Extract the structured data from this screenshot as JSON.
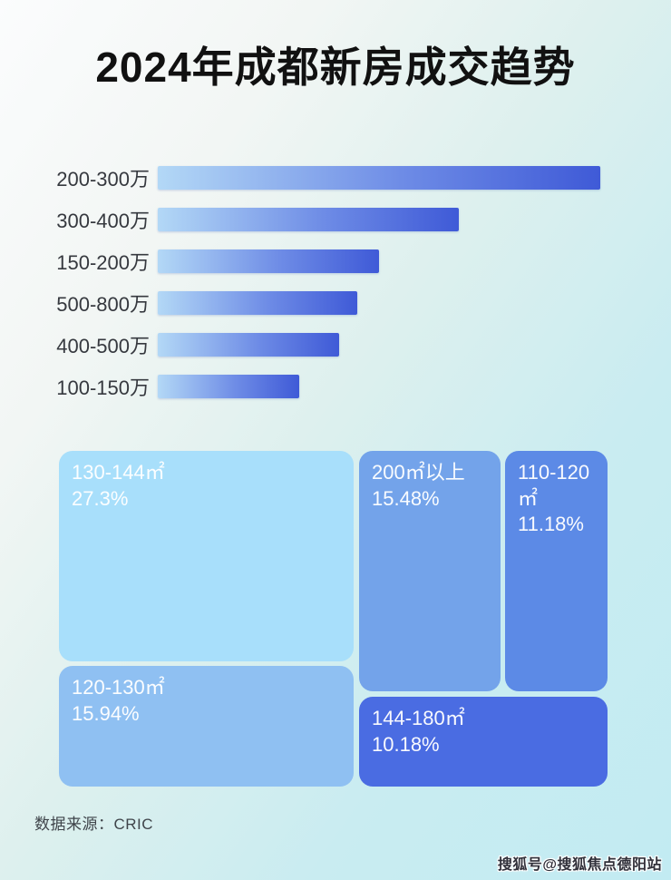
{
  "title": "2024年成都新房成交趋势",
  "colors": {
    "background_top_left": "#fbfcfd",
    "background_bottom_right": "#c2ebf2",
    "title_color": "#111111",
    "bar_label_color": "#36393f",
    "bar_gradient_start": "#b3d8f6",
    "bar_gradient_end": "#3f5ad7",
    "tile_text_color": "#ffffff"
  },
  "chart_data": [
    {
      "type": "bar",
      "orientation": "horizontal",
      "title": "",
      "xlabel": "",
      "ylabel": "",
      "categories": [
        "200-300万",
        "300-400万",
        "150-200万",
        "500-800万",
        "400-500万",
        "100-150万"
      ],
      "values": [
        100,
        68,
        50,
        45,
        41,
        32
      ],
      "values_note": "relative bar length as % of longest bar; no numeric axis or data labels shown in image",
      "bar_gradient": [
        "#b3d8f6",
        "#3f5ad7"
      ],
      "grid": false,
      "legend": false
    },
    {
      "type": "treemap",
      "title": "",
      "tiles": [
        {
          "label": "130-144㎡",
          "value_pct": 27.3,
          "value_text": "27.3%",
          "color": "#a8dffb"
        },
        {
          "label": "200㎡以上",
          "value_pct": 15.48,
          "value_text": "15.48%",
          "color": "#73a3ea"
        },
        {
          "label": "110-120㎡",
          "value_pct": 11.18,
          "value_text": "11.18%",
          "color": "#5c8ae6"
        },
        {
          "label": "120-130㎡",
          "value_pct": 15.94,
          "value_text": "15.94%",
          "color": "#8fc0f2"
        },
        {
          "label": "144-180㎡",
          "value_pct": 10.18,
          "value_text": "10.18%",
          "color": "#4a6ce2"
        }
      ]
    }
  ],
  "footer": {
    "source": "数据来源：CRIC"
  },
  "watermark": {
    "text": "搜狐号@搜狐焦点德阳站"
  }
}
